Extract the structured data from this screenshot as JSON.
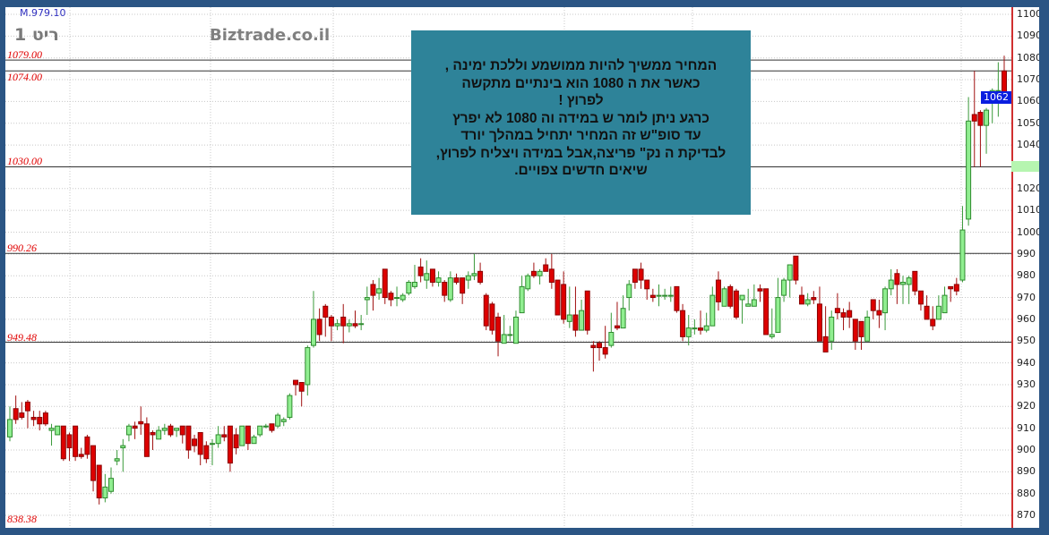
{
  "header": {
    "title": "ריט 1",
    "watermark": "Biztrade.co.il",
    "top_value": "M.979.10"
  },
  "annotation": {
    "lines": [
      "המחיר ממשיך  להיות ממושמע וללכת ימינה ,",
      "כאשר   את  ה 1080  הוא  בינתיים מתקשה",
      "לפרוץ !",
      "כרגע ניתן לומר  ש  במידה  וה  1080  לא יפרץ",
      "עד  סופ\"ש  זה  המחיר  יתחיל  במהלך יורד",
      "לבדיקת ה  נק\" פריצה,אבל במידה  ויצליח לפרוץ,",
      "שיאים  חדשים צפויים."
    ]
  },
  "colors": {
    "up": "#90ee90",
    "up_edge": "#2e8b2e",
    "down": "#dd0000",
    "down_edge": "#8b0000",
    "level_line": "#333333",
    "level_label": "#e00000",
    "last_price_bg": "#0a1ee0"
  },
  "chart_data": {
    "type": "candlestick",
    "ylim": [
      865,
      1102
    ],
    "yticks": [
      1100,
      1090,
      1080,
      1070,
      1060,
      1050,
      1040,
      1030,
      1020,
      1010,
      1000,
      990,
      980,
      970,
      960,
      950,
      940,
      930,
      920,
      910,
      900,
      890,
      880,
      870
    ],
    "grid": true,
    "levels": [
      {
        "value": 1079,
        "label": "1079.00"
      },
      {
        "value": 1074,
        "label": "1074.00"
      },
      {
        "value": 1030,
        "label": "1030.00"
      },
      {
        "value": 990.26,
        "label": "990.26"
      },
      {
        "value": 949.48,
        "label": "949.48"
      },
      {
        "value": 838.38,
        "label": "838.38"
      }
    ],
    "last_price": 1062,
    "marker_price": 1030,
    "ohlc_fields": [
      "open",
      "high",
      "low",
      "close"
    ],
    "candles": [
      [
        906,
        920,
        904,
        914
      ],
      [
        919,
        925,
        912,
        914
      ],
      [
        917,
        922,
        914,
        915
      ],
      [
        922,
        923,
        910,
        918
      ],
      [
        915,
        918,
        911,
        914
      ],
      [
        915,
        918,
        909,
        912
      ],
      [
        917,
        918,
        911,
        912
      ],
      [
        909,
        912,
        902,
        910
      ],
      [
        907,
        911,
        907,
        911
      ],
      [
        911,
        911,
        895,
        896
      ],
      [
        907,
        908,
        895,
        901
      ],
      [
        911,
        911,
        895,
        897
      ],
      [
        898,
        901,
        896,
        897
      ],
      [
        906,
        907,
        896,
        898
      ],
      [
        902,
        902,
        881,
        886
      ],
      [
        893,
        893,
        875,
        878
      ],
      [
        878,
        889,
        876,
        883
      ],
      [
        881,
        892,
        880,
        887
      ],
      [
        895,
        900,
        893,
        896
      ],
      [
        901,
        905,
        890,
        902
      ],
      [
        907,
        912,
        904,
        911
      ],
      [
        911,
        913,
        905,
        910
      ],
      [
        913,
        920,
        907,
        912
      ],
      [
        912,
        915,
        897,
        897
      ],
      [
        908,
        909,
        900,
        907
      ],
      [
        905,
        911,
        905,
        909
      ],
      [
        909,
        912,
        907,
        910
      ],
      [
        911,
        912,
        906,
        907
      ],
      [
        909,
        910,
        906,
        910
      ],
      [
        911,
        911,
        903,
        907
      ],
      [
        911,
        911,
        896,
        900
      ],
      [
        905,
        907,
        899,
        902
      ],
      [
        908,
        908,
        893,
        898
      ],
      [
        902,
        904,
        894,
        896
      ],
      [
        903,
        905,
        893,
        903
      ],
      [
        903,
        911,
        901,
        907
      ],
      [
        907,
        911,
        904,
        906
      ],
      [
        911,
        911,
        890,
        894
      ],
      [
        907,
        910,
        898,
        901
      ],
      [
        902,
        911,
        902,
        911
      ],
      [
        911,
        911,
        900,
        903
      ],
      [
        903,
        907,
        903,
        906
      ],
      [
        907,
        911,
        906,
        911
      ],
      [
        911,
        912,
        910,
        911
      ],
      [
        912,
        912,
        908,
        909
      ],
      [
        911,
        917,
        910,
        916
      ],
      [
        913,
        915,
        911,
        914
      ],
      [
        915,
        926,
        914,
        925
      ],
      [
        932,
        932,
        925,
        930
      ],
      [
        931,
        931,
        920,
        927
      ],
      [
        930,
        948,
        925,
        947
      ],
      [
        948,
        973,
        947,
        960
      ],
      [
        960,
        965,
        950,
        953
      ],
      [
        966,
        967,
        952,
        961
      ],
      [
        961,
        962,
        950,
        957
      ],
      [
        957,
        960,
        955,
        958
      ],
      [
        961,
        967,
        949,
        957
      ],
      [
        957,
        960,
        954,
        958
      ],
      [
        958,
        964,
        956,
        957
      ],
      [
        958,
        962,
        955,
        958
      ],
      [
        969,
        975,
        962,
        970
      ],
      [
        976,
        978,
        964,
        971
      ],
      [
        972,
        979,
        969,
        974
      ],
      [
        983,
        983,
        967,
        970
      ],
      [
        972,
        973,
        966,
        969
      ],
      [
        970,
        975,
        966,
        970
      ],
      [
        969,
        972,
        968,
        971
      ],
      [
        972,
        978,
        971,
        977
      ],
      [
        975,
        985,
        974,
        977
      ],
      [
        984,
        988,
        977,
        980
      ],
      [
        978,
        987,
        974,
        981
      ],
      [
        983,
        983,
        975,
        977
      ],
      [
        977,
        982,
        975,
        979
      ],
      [
        977,
        978,
        968,
        971
      ],
      [
        969,
        982,
        968,
        979
      ],
      [
        979,
        981,
        976,
        977
      ],
      [
        979,
        979,
        967,
        972
      ],
      [
        978,
        982,
        974,
        980
      ],
      [
        980,
        990,
        978,
        981
      ],
      [
        982,
        986,
        976,
        977
      ],
      [
        971,
        972,
        955,
        957
      ],
      [
        967,
        968,
        953,
        955
      ],
      [
        961,
        963,
        943,
        950
      ],
      [
        949,
        962,
        949,
        953
      ],
      [
        953,
        957,
        950,
        953
      ],
      [
        949,
        964,
        949,
        961
      ],
      [
        963,
        980,
        963,
        975
      ],
      [
        974,
        981,
        973,
        980
      ],
      [
        982,
        986,
        979,
        980
      ],
      [
        980,
        983,
        976,
        982
      ],
      [
        985,
        988,
        982,
        982
      ],
      [
        983,
        990,
        974,
        977
      ],
      [
        978,
        978,
        962,
        962
      ],
      [
        976,
        982,
        958,
        960
      ],
      [
        959,
        975,
        956,
        962
      ],
      [
        962,
        975,
        952,
        955
      ],
      [
        955,
        969,
        955,
        964
      ],
      [
        973,
        973,
        953,
        955
      ],
      [
        948,
        950,
        936,
        947
      ],
      [
        949,
        950,
        941,
        947
      ],
      [
        947,
        957,
        942,
        944
      ],
      [
        948,
        963,
        947,
        954
      ],
      [
        957,
        968,
        955,
        956
      ],
      [
        956,
        971,
        956,
        965
      ],
      [
        970,
        978,
        964,
        976
      ],
      [
        983,
        983,
        974,
        977
      ],
      [
        983,
        986,
        974,
        978
      ],
      [
        978,
        978,
        969,
        974
      ],
      [
        971,
        974,
        968,
        970
      ],
      [
        971,
        976,
        966,
        971
      ],
      [
        971,
        974,
        969,
        971
      ],
      [
        971,
        975,
        968,
        971
      ],
      [
        975,
        975,
        963,
        964
      ],
      [
        964,
        967,
        950,
        952
      ],
      [
        952,
        962,
        948,
        956
      ],
      [
        956,
        960,
        953,
        956
      ],
      [
        956,
        964,
        953,
        955
      ],
      [
        955,
        963,
        954,
        957
      ],
      [
        957,
        975,
        957,
        971
      ],
      [
        978,
        982,
        964,
        968
      ],
      [
        966,
        975,
        966,
        974
      ],
      [
        975,
        976,
        965,
        966
      ],
      [
        973,
        974,
        960,
        961
      ],
      [
        969,
        971,
        958,
        971
      ],
      [
        966,
        974,
        966,
        967
      ],
      [
        966,
        976,
        966,
        969
      ],
      [
        974,
        976,
        968,
        973
      ],
      [
        974,
        974,
        954,
        953
      ],
      [
        952,
        965,
        951,
        953
      ],
      [
        954,
        979,
        954,
        970
      ],
      [
        971,
        979,
        968,
        978
      ],
      [
        978,
        985,
        970,
        985
      ],
      [
        989,
        989,
        976,
        978
      ],
      [
        971,
        975,
        967,
        967
      ],
      [
        967,
        972,
        966,
        969
      ],
      [
        970,
        973,
        967,
        969
      ],
      [
        967,
        975,
        950,
        950
      ],
      [
        952,
        966,
        945,
        945
      ],
      [
        950,
        964,
        946,
        961
      ],
      [
        965,
        972,
        960,
        963
      ],
      [
        963,
        965,
        955,
        961
      ],
      [
        964,
        968,
        956,
        961
      ],
      [
        960,
        960,
        946,
        950
      ],
      [
        959,
        959,
        946,
        952
      ],
      [
        950,
        964,
        950,
        961
      ],
      [
        969,
        969,
        960,
        964
      ],
      [
        964,
        969,
        956,
        962
      ],
      [
        963,
        975,
        955,
        974
      ],
      [
        974,
        983,
        971,
        978
      ],
      [
        981,
        983,
        967,
        976
      ],
      [
        976,
        980,
        967,
        977
      ],
      [
        976,
        980,
        967,
        979
      ],
      [
        982,
        982,
        971,
        973
      ],
      [
        973,
        973,
        964,
        967
      ],
      [
        966,
        971,
        960,
        960
      ],
      [
        960,
        966,
        955,
        957
      ],
      [
        960,
        971,
        960,
        966
      ],
      [
        963,
        975,
        963,
        971
      ],
      [
        975,
        975,
        968,
        974
      ],
      [
        976,
        979,
        971,
        973
      ],
      [
        978,
        1012,
        977,
        1001
      ],
      [
        1006,
        1062,
        1003,
        1051
      ],
      [
        1054,
        1074,
        1030,
        1051
      ],
      [
        1055,
        1056,
        1030,
        1049
      ],
      [
        1049,
        1057,
        1036,
        1056
      ],
      [
        1060,
        1066,
        1050,
        1065
      ],
      [
        1065,
        1078,
        1053,
        1065
      ],
      [
        1074,
        1081,
        1060,
        1062
      ]
    ]
  }
}
